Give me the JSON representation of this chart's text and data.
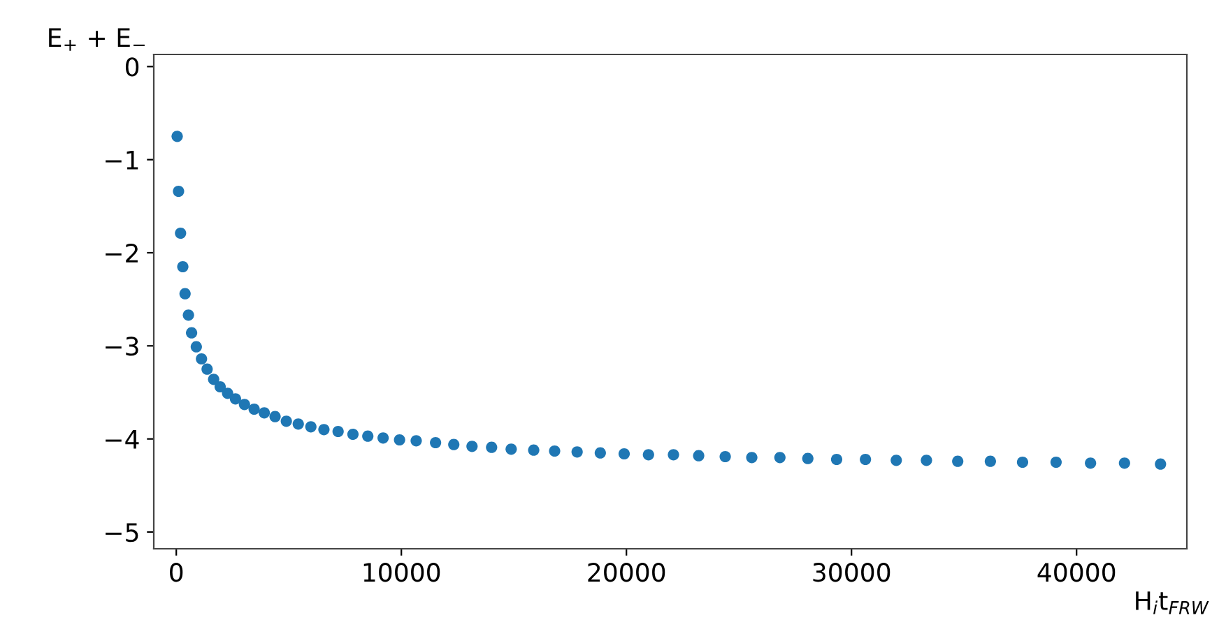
{
  "chart_data": {
    "type": "scatter",
    "xlabel": "H$_{i}$t$_{FRW}$",
    "ylabel": "E$_{+}$ + E$_{−}$",
    "x": [
      40,
      100,
      190,
      290,
      390,
      540,
      680,
      890,
      1120,
      1370,
      1660,
      1950,
      2280,
      2630,
      3030,
      3460,
      3910,
      4390,
      4890,
      5420,
      5980,
      6560,
      7190,
      7850,
      8510,
      9190,
      9920,
      10660,
      11520,
      12330,
      13140,
      14010,
      14880,
      15880,
      16810,
      17810,
      18840,
      19900,
      20980,
      22090,
      23210,
      24390,
      25570,
      26820,
      28060,
      29340,
      30620,
      31990,
      33330,
      34720,
      36170,
      37600,
      39090,
      40620,
      42130,
      43730
    ],
    "series": [
      {
        "color": "#1f77b4",
        "values": [
          -0.75,
          -1.34,
          -1.79,
          -2.15,
          -2.44,
          -2.67,
          -2.86,
          -3.01,
          -3.14,
          -3.25,
          -3.36,
          -3.44,
          -3.51,
          -3.57,
          -3.63,
          -3.68,
          -3.72,
          -3.76,
          -3.81,
          -3.84,
          -3.87,
          -3.9,
          -3.92,
          -3.95,
          -3.97,
          -3.99,
          -4.01,
          -4.02,
          -4.04,
          -4.06,
          -4.08,
          -4.09,
          -4.11,
          -4.12,
          -4.13,
          -4.14,
          -4.15,
          -4.16,
          -4.17,
          -4.17,
          -4.18,
          -4.19,
          -4.2,
          -4.2,
          -4.21,
          -4.22,
          -4.22,
          -4.23,
          -4.23,
          -4.24,
          -4.24,
          -4.25,
          -4.25,
          -4.26,
          -4.26,
          -4.27
        ]
      }
    ],
    "xlim": [
      -1000,
      44900
    ],
    "ylim": [
      -5.18,
      0.13
    ],
    "xticks": [
      0,
      10000,
      20000,
      30000,
      40000
    ],
    "yticks": [
      {
        "value": -5,
        "label": "−5"
      },
      {
        "value": -4,
        "label": "−4"
      },
      {
        "value": -3,
        "label": "−3"
      },
      {
        "value": -2,
        "label": "−2"
      },
      {
        "value": -1,
        "label": "−1"
      },
      0
    ],
    "marker": "circle",
    "grid": false,
    "legend": false
  }
}
